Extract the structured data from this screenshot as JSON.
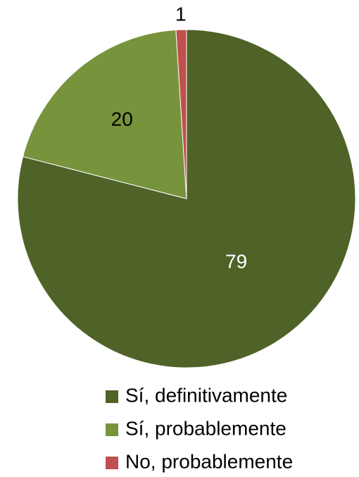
{
  "chart_data": {
    "type": "pie",
    "categories": [
      "Sí, definitivamente",
      "Sí, probablemente",
      "No, probablemente"
    ],
    "values": [
      79,
      20,
      1
    ],
    "colors": [
      "#4f6228",
      "#77933c",
      "#c0504d"
    ],
    "label_colors": [
      "#ffffff",
      "#000000",
      "#000000"
    ]
  }
}
